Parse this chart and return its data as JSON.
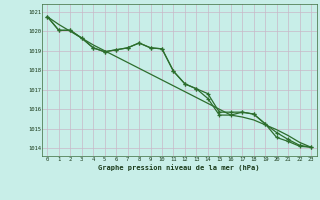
{
  "xlabel": "Graphe pression niveau de la mer (hPa)",
  "bg_color": "#c8eee8",
  "grid_color": "#c8b8c8",
  "line_color": "#2d6e2d",
  "xlim_min": -0.5,
  "xlim_max": 23.5,
  "ylim_min": 1013.6,
  "ylim_max": 1021.4,
  "yticks": [
    1014,
    1015,
    1016,
    1017,
    1018,
    1019,
    1020,
    1021
  ],
  "xticks": [
    0,
    1,
    2,
    3,
    4,
    5,
    6,
    7,
    8,
    9,
    10,
    11,
    12,
    13,
    14,
    15,
    16,
    17,
    18,
    19,
    20,
    21,
    22,
    23
  ],
  "smooth": [
    1020.75,
    1020.35,
    1020.0,
    1019.65,
    1019.3,
    1019.0,
    1018.7,
    1018.4,
    1018.1,
    1017.8,
    1017.5,
    1017.2,
    1016.9,
    1016.6,
    1016.3,
    1016.0,
    1015.7,
    1015.6,
    1015.45,
    1015.2,
    1014.95,
    1014.65,
    1014.3,
    1014.05
  ],
  "line1": [
    1020.75,
    1020.05,
    1020.05,
    1019.65,
    1019.15,
    1018.95,
    1019.05,
    1019.15,
    1019.4,
    1019.15,
    1019.1,
    1017.95,
    1017.3,
    1017.05,
    1016.8,
    1015.85,
    1015.85,
    1015.85,
    1015.75,
    1015.25,
    1014.8,
    1014.45,
    1014.15,
    1014.05
  ],
  "line2": [
    1020.75,
    1020.05,
    1020.05,
    1019.65,
    1019.15,
    1018.95,
    1019.05,
    1019.15,
    1019.4,
    1019.15,
    1019.1,
    1017.95,
    1017.3,
    1017.05,
    1016.55,
    1015.7,
    1015.7,
    1015.85,
    1015.75,
    1015.25,
    1014.55,
    1014.35,
    1014.1,
    1014.05
  ]
}
